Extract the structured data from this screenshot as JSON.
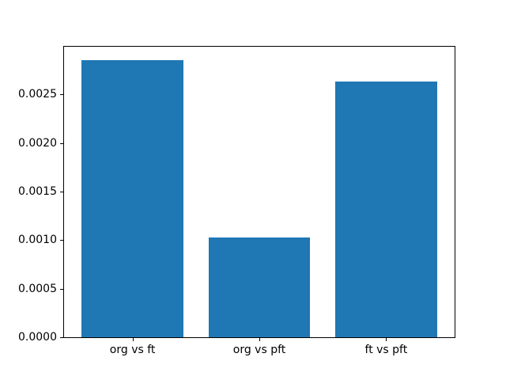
{
  "figure": {
    "background": "#ffffff"
  },
  "chart_data": {
    "type": "bar",
    "title": "",
    "xlabel": "",
    "ylabel": "",
    "categories": [
      "org vs ft",
      "org vs pft",
      "ft vs pft"
    ],
    "values": [
      0.00285,
      0.00103,
      0.00263
    ],
    "x_positions": [
      0,
      1,
      2
    ],
    "bar_width": 0.8,
    "xlim": [
      -0.54,
      2.54
    ],
    "ylim": [
      0,
      0.0029925
    ],
    "yticks": [
      0.0,
      0.0005,
      0.001,
      0.0015,
      0.002,
      0.0025
    ],
    "ytick_labels": [
      "0.0000",
      "0.0005",
      "0.0010",
      "0.0015",
      "0.0020",
      "0.0025"
    ],
    "grid": false,
    "legend": null,
    "bar_color": "#1f77b4",
    "spine_color": "#000000",
    "tick_color": "#000000",
    "text_color": "#000000"
  }
}
